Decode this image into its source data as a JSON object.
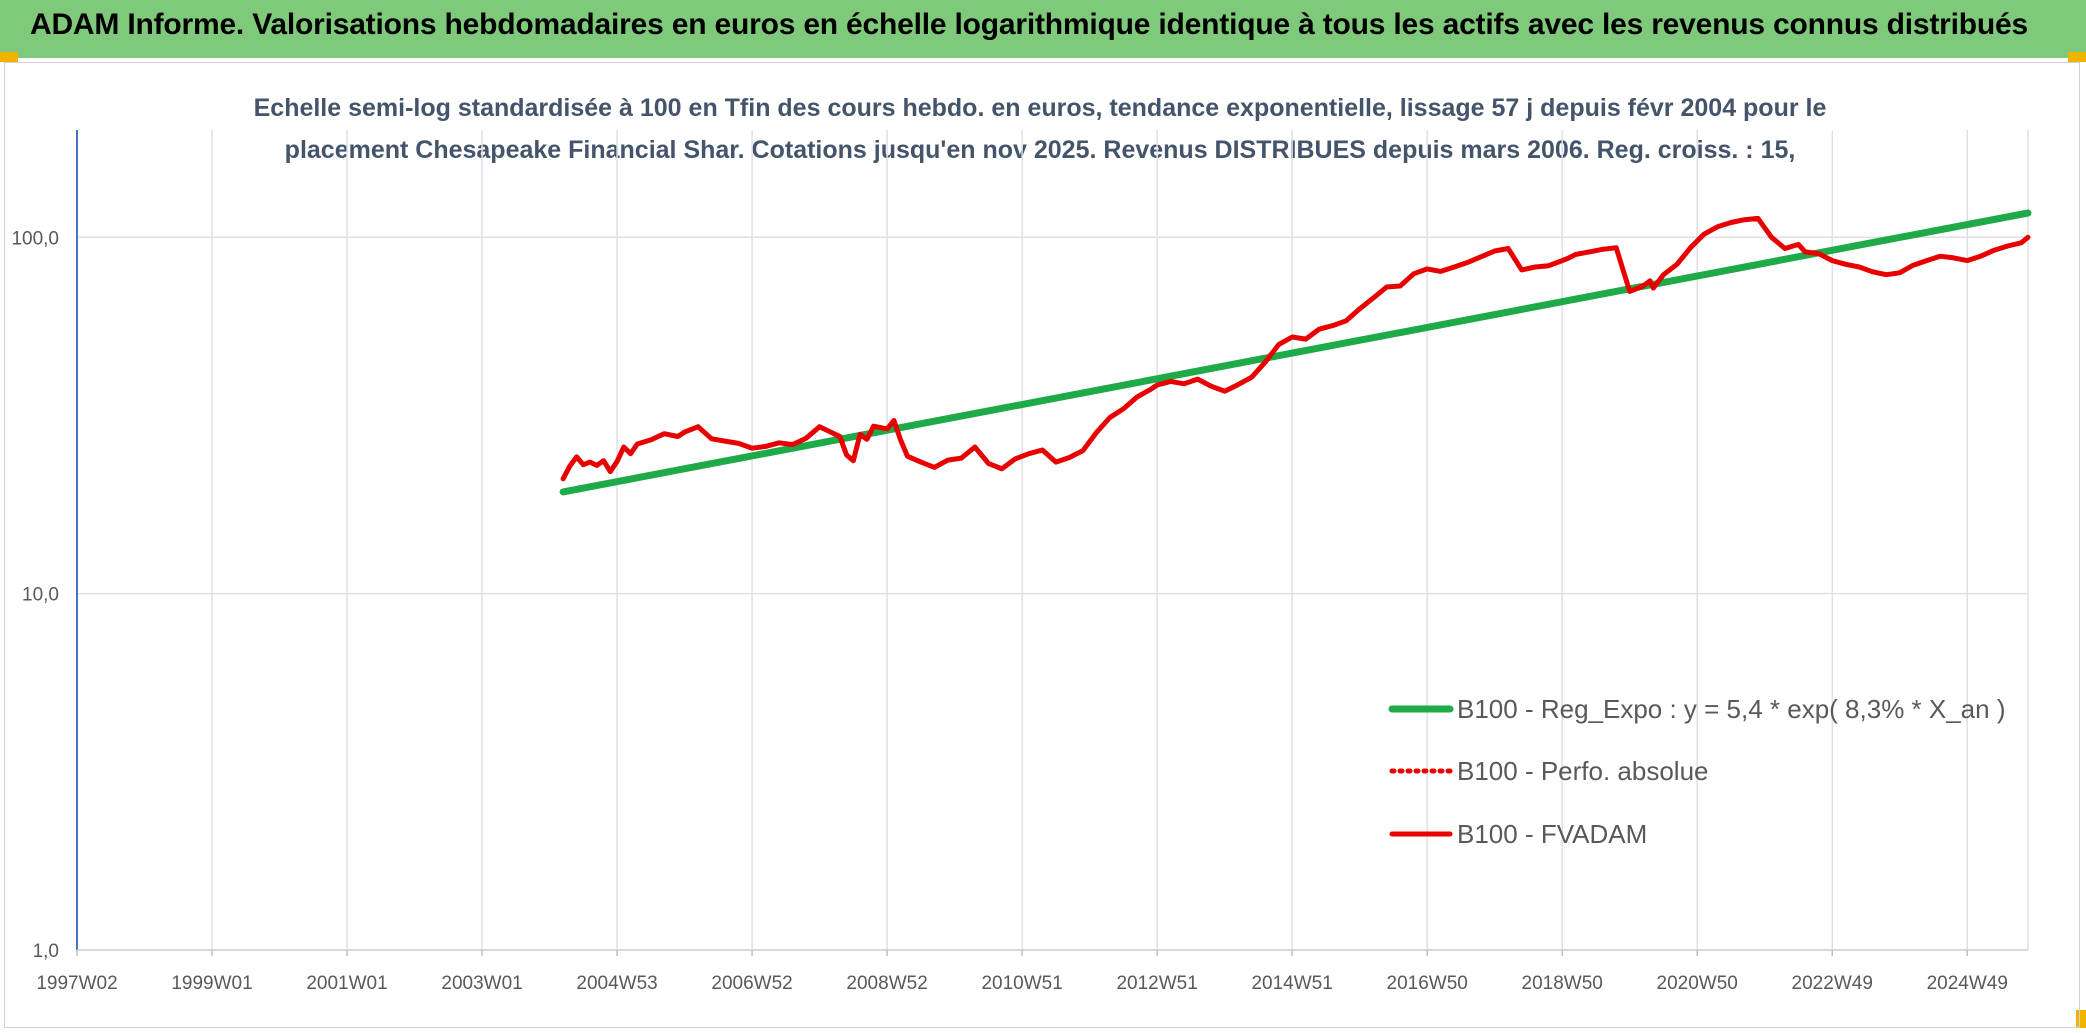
{
  "header": {
    "title": "ADAM Informe. Valorisations hebdomadaires en euros en échelle logarithmique identique à tous les actifs avec les revenus connus distribués"
  },
  "colors": {
    "header_bg": "#7fc97a",
    "corner_accent": "#f0b400",
    "regression_line": "#1faa4a",
    "fvadam_line": "#e80000",
    "perf_line": "#e80000",
    "grid": "#dde1e6",
    "text": "#44546a"
  },
  "chart_data": {
    "type": "line",
    "title_lines": [
      "Echelle semi-log standardisée à 100 en Tfin des cours hebdo. en euros, tendance exponentielle, lissage 57 j depuis févr 2004 pour le",
      "placement Chesapeake Financial Shar. Cotations jusqu'en nov 2025. Revenus DISTRIBUES depuis mars 2006. Reg. croiss. : 15,"
    ],
    "y_scale": "log",
    "ylim": [
      1,
      200
    ],
    "y_ticks": [
      {
        "value": 1,
        "label": "1,0"
      },
      {
        "value": 10,
        "label": "10,0"
      },
      {
        "value": 100,
        "label": "100,0"
      }
    ],
    "xlim": [
      1997.0,
      2025.9
    ],
    "x_ticks": [
      {
        "value": 1997.0,
        "label": "1997W02"
      },
      {
        "value": 1999.0,
        "label": "1999W01"
      },
      {
        "value": 2001.0,
        "label": "2001W01"
      },
      {
        "value": 2003.0,
        "label": "2003W01"
      },
      {
        "value": 2005.0,
        "label": "2004W53"
      },
      {
        "value": 2007.0,
        "label": "2006W52"
      },
      {
        "value": 2009.0,
        "label": "2008W52"
      },
      {
        "value": 2011.0,
        "label": "2010W51"
      },
      {
        "value": 2013.0,
        "label": "2012W51"
      },
      {
        "value": 2015.0,
        "label": "2014W51"
      },
      {
        "value": 2017.0,
        "label": "2016W50"
      },
      {
        "value": 2019.0,
        "label": "2018W50"
      },
      {
        "value": 2021.0,
        "label": "2020W50"
      },
      {
        "value": 2023.0,
        "label": "2022W49"
      },
      {
        "value": 2025.0,
        "label": "2024W49"
      }
    ],
    "grid": true,
    "legend_position": "bottom-right",
    "series": [
      {
        "name": "B100 - Reg_Expo : y = 5,4 * exp( 8,3% *  X_an )",
        "style": "solid-thick",
        "color": "#1faa4a",
        "x": [
          2004.2,
          2025.9
        ],
        "y": [
          19.3,
          117.0
        ]
      },
      {
        "name": "B100 - Perfo. absolue",
        "style": "dotted",
        "color": "#e80000",
        "x": [],
        "y": []
      },
      {
        "name": "B100 - FVADAM",
        "style": "solid",
        "color": "#e80000",
        "x": [
          2004.2,
          2004.3,
          2004.4,
          2004.5,
          2004.6,
          2004.7,
          2004.8,
          2004.9,
          2005.0,
          2005.1,
          2005.2,
          2005.3,
          2005.5,
          2005.7,
          2005.9,
          2006.0,
          2006.2,
          2006.4,
          2006.6,
          2006.8,
          2007.0,
          2007.2,
          2007.4,
          2007.6,
          2007.8,
          2008.0,
          2008.2,
          2008.3,
          2008.4,
          2008.5,
          2008.6,
          2008.7,
          2008.8,
          2009.0,
          2009.1,
          2009.2,
          2009.3,
          2009.5,
          2009.7,
          2009.9,
          2010.1,
          2010.3,
          2010.5,
          2010.7,
          2010.9,
          2011.1,
          2011.3,
          2011.5,
          2011.7,
          2011.9,
          2012.1,
          2012.3,
          2012.5,
          2012.7,
          2012.9,
          2013.0,
          2013.2,
          2013.4,
          2013.6,
          2013.8,
          2014.0,
          2014.2,
          2014.4,
          2014.6,
          2014.8,
          2015.0,
          2015.2,
          2015.4,
          2015.6,
          2015.8,
          2016.0,
          2016.2,
          2016.4,
          2016.6,
          2016.8,
          2017.0,
          2017.2,
          2017.4,
          2017.6,
          2017.8,
          2018.0,
          2018.2,
          2018.4,
          2018.6,
          2018.8,
          2019.0,
          2019.1,
          2019.2,
          2019.4,
          2019.6,
          2019.8,
          2020.0,
          2020.2,
          2020.3,
          2020.35,
          2020.5,
          2020.7,
          2020.9,
          2021.1,
          2021.3,
          2021.5,
          2021.7,
          2021.9,
          2022.1,
          2022.3,
          2022.5,
          2022.6,
          2022.8,
          2023.0,
          2023.2,
          2023.4,
          2023.6,
          2023.8,
          2024.0,
          2024.2,
          2024.4,
          2024.6,
          2024.8,
          2025.0,
          2025.2,
          2025.4,
          2025.6,
          2025.8,
          2025.9
        ],
        "y": [
          21.0,
          22.8,
          24.2,
          23.0,
          23.4,
          22.9,
          23.6,
          22.0,
          23.5,
          25.8,
          24.7,
          26.3,
          27.0,
          28.1,
          27.6,
          28.4,
          29.4,
          27.2,
          26.8,
          26.4,
          25.6,
          25.9,
          26.5,
          26.2,
          27.3,
          29.4,
          28.2,
          27.6,
          24.5,
          23.6,
          28.0,
          27.1,
          29.5,
          29.0,
          30.6,
          27.0,
          24.3,
          23.4,
          22.6,
          23.7,
          24.0,
          25.8,
          23.2,
          22.4,
          23.9,
          24.7,
          25.3,
          23.4,
          24.1,
          25.2,
          28.3,
          31.2,
          33.0,
          35.6,
          37.4,
          38.5,
          39.4,
          38.8,
          40.0,
          38.2,
          37.0,
          38.6,
          40.5,
          44.6,
          50.0,
          52.5,
          51.8,
          55.2,
          56.5,
          58.3,
          63.0,
          67.5,
          72.5,
          73.0,
          79.0,
          81.5,
          80.2,
          82.5,
          85.0,
          88.2,
          91.5,
          93.0,
          81.0,
          82.5,
          83.2,
          86.0,
          87.5,
          89.5,
          91.0,
          92.5,
          93.5,
          70.5,
          73.0,
          75.5,
          72.0,
          78.5,
          84.0,
          93.5,
          102.0,
          107.0,
          110.0,
          112.0,
          113.0,
          100.0,
          93.0,
          95.5,
          91.0,
          90.0,
          86.0,
          84.0,
          82.5,
          80.0,
          78.5,
          79.5,
          83.5,
          86.0,
          88.5,
          87.5,
          86.0,
          88.5,
          92.0,
          94.5,
          96.5,
          100.0
        ]
      }
    ]
  }
}
